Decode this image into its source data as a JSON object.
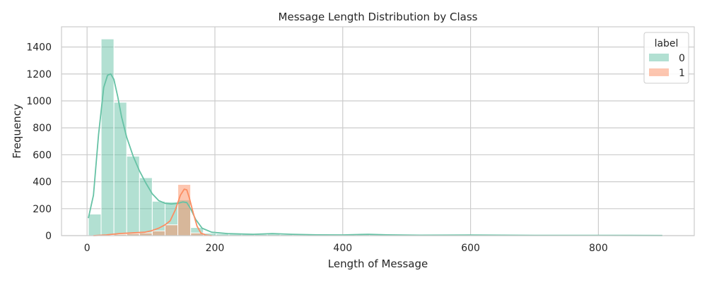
{
  "chart_data": {
    "type": "histogram",
    "title": "Message Length Distribution by Class",
    "xlabel": "Length of Message",
    "ylabel": "Frequency",
    "xlim": [
      -40,
      950
    ],
    "ylim": [
      0,
      1550
    ],
    "xticks": [
      0,
      200,
      400,
      600,
      800
    ],
    "yticks": [
      0,
      200,
      400,
      600,
      800,
      1000,
      1200,
      1400
    ],
    "grid": true,
    "legend": {
      "title": "label",
      "placement": "top-right"
    },
    "bin_width": 20,
    "series": [
      {
        "name": "0",
        "color": "#66c2a5",
        "bins": [
          {
            "x0": 2,
            "x1": 22,
            "count": 160
          },
          {
            "x0": 22,
            "x1": 42,
            "count": 1460
          },
          {
            "x0": 42,
            "x1": 62,
            "count": 990
          },
          {
            "x0": 62,
            "x1": 82,
            "count": 590
          },
          {
            "x0": 82,
            "x1": 102,
            "count": 430
          },
          {
            "x0": 102,
            "x1": 122,
            "count": 255
          },
          {
            "x0": 122,
            "x1": 142,
            "count": 250
          },
          {
            "x0": 142,
            "x1": 162,
            "count": 265
          },
          {
            "x0": 162,
            "x1": 182,
            "count": 60
          },
          {
            "x0": 182,
            "x1": 202,
            "count": 18
          },
          {
            "x0": 202,
            "x1": 222,
            "count": 14
          },
          {
            "x0": 222,
            "x1": 242,
            "count": 12
          },
          {
            "x0": 242,
            "x1": 262,
            "count": 10
          },
          {
            "x0": 262,
            "x1": 282,
            "count": 10
          },
          {
            "x0": 282,
            "x1": 302,
            "count": 12
          },
          {
            "x0": 302,
            "x1": 322,
            "count": 8
          },
          {
            "x0": 322,
            "x1": 342,
            "count": 7
          },
          {
            "x0": 342,
            "x1": 362,
            "count": 5
          },
          {
            "x0": 362,
            "x1": 382,
            "count": 5
          },
          {
            "x0": 382,
            "x1": 402,
            "count": 6
          },
          {
            "x0": 402,
            "x1": 422,
            "count": 4
          },
          {
            "x0": 422,
            "x1": 442,
            "count": 10
          },
          {
            "x0": 442,
            "x1": 462,
            "count": 8
          },
          {
            "x0": 462,
            "x1": 482,
            "count": 3
          },
          {
            "x0": 602,
            "x1": 622,
            "count": 4
          },
          {
            "x0": 882,
            "x1": 902,
            "count": 2
          }
        ],
        "kde": [
          [
            2,
            130
          ],
          [
            10,
            300
          ],
          [
            18,
            750
          ],
          [
            26,
            1100
          ],
          [
            32,
            1190
          ],
          [
            37,
            1200
          ],
          [
            42,
            1160
          ],
          [
            48,
            1030
          ],
          [
            54,
            880
          ],
          [
            62,
            730
          ],
          [
            72,
            590
          ],
          [
            82,
            480
          ],
          [
            92,
            390
          ],
          [
            102,
            310
          ],
          [
            112,
            260
          ],
          [
            122,
            240
          ],
          [
            132,
            235
          ],
          [
            142,
            240
          ],
          [
            150,
            250
          ],
          [
            156,
            245
          ],
          [
            162,
            200
          ],
          [
            170,
            120
          ],
          [
            180,
            55
          ],
          [
            195,
            25
          ],
          [
            220,
            15
          ],
          [
            260,
            10
          ],
          [
            290,
            15
          ],
          [
            320,
            10
          ],
          [
            360,
            6
          ],
          [
            400,
            5
          ],
          [
            440,
            10
          ],
          [
            470,
            6
          ],
          [
            520,
            3
          ],
          [
            600,
            4
          ],
          [
            700,
            2
          ],
          [
            800,
            2
          ],
          [
            900,
            1
          ]
        ]
      },
      {
        "name": "1",
        "color": "#fc8d62",
        "bins": [
          {
            "x0": 22,
            "x1": 42,
            "count": 5
          },
          {
            "x0": 42,
            "x1": 62,
            "count": 10
          },
          {
            "x0": 62,
            "x1": 82,
            "count": 15
          },
          {
            "x0": 82,
            "x1": 102,
            "count": 20
          },
          {
            "x0": 102,
            "x1": 122,
            "count": 35
          },
          {
            "x0": 122,
            "x1": 142,
            "count": 80
          },
          {
            "x0": 142,
            "x1": 162,
            "count": 380
          },
          {
            "x0": 162,
            "x1": 182,
            "count": 20
          }
        ],
        "kde": [
          [
            10,
            0
          ],
          [
            30,
            5
          ],
          [
            50,
            15
          ],
          [
            70,
            20
          ],
          [
            90,
            25
          ],
          [
            100,
            35
          ],
          [
            112,
            55
          ],
          [
            122,
            80
          ],
          [
            130,
            110
          ],
          [
            138,
            190
          ],
          [
            146,
            300
          ],
          [
            152,
            345
          ],
          [
            156,
            340
          ],
          [
            160,
            280
          ],
          [
            166,
            170
          ],
          [
            172,
            70
          ],
          [
            178,
            20
          ],
          [
            185,
            5
          ],
          [
            195,
            0
          ]
        ]
      }
    ]
  }
}
